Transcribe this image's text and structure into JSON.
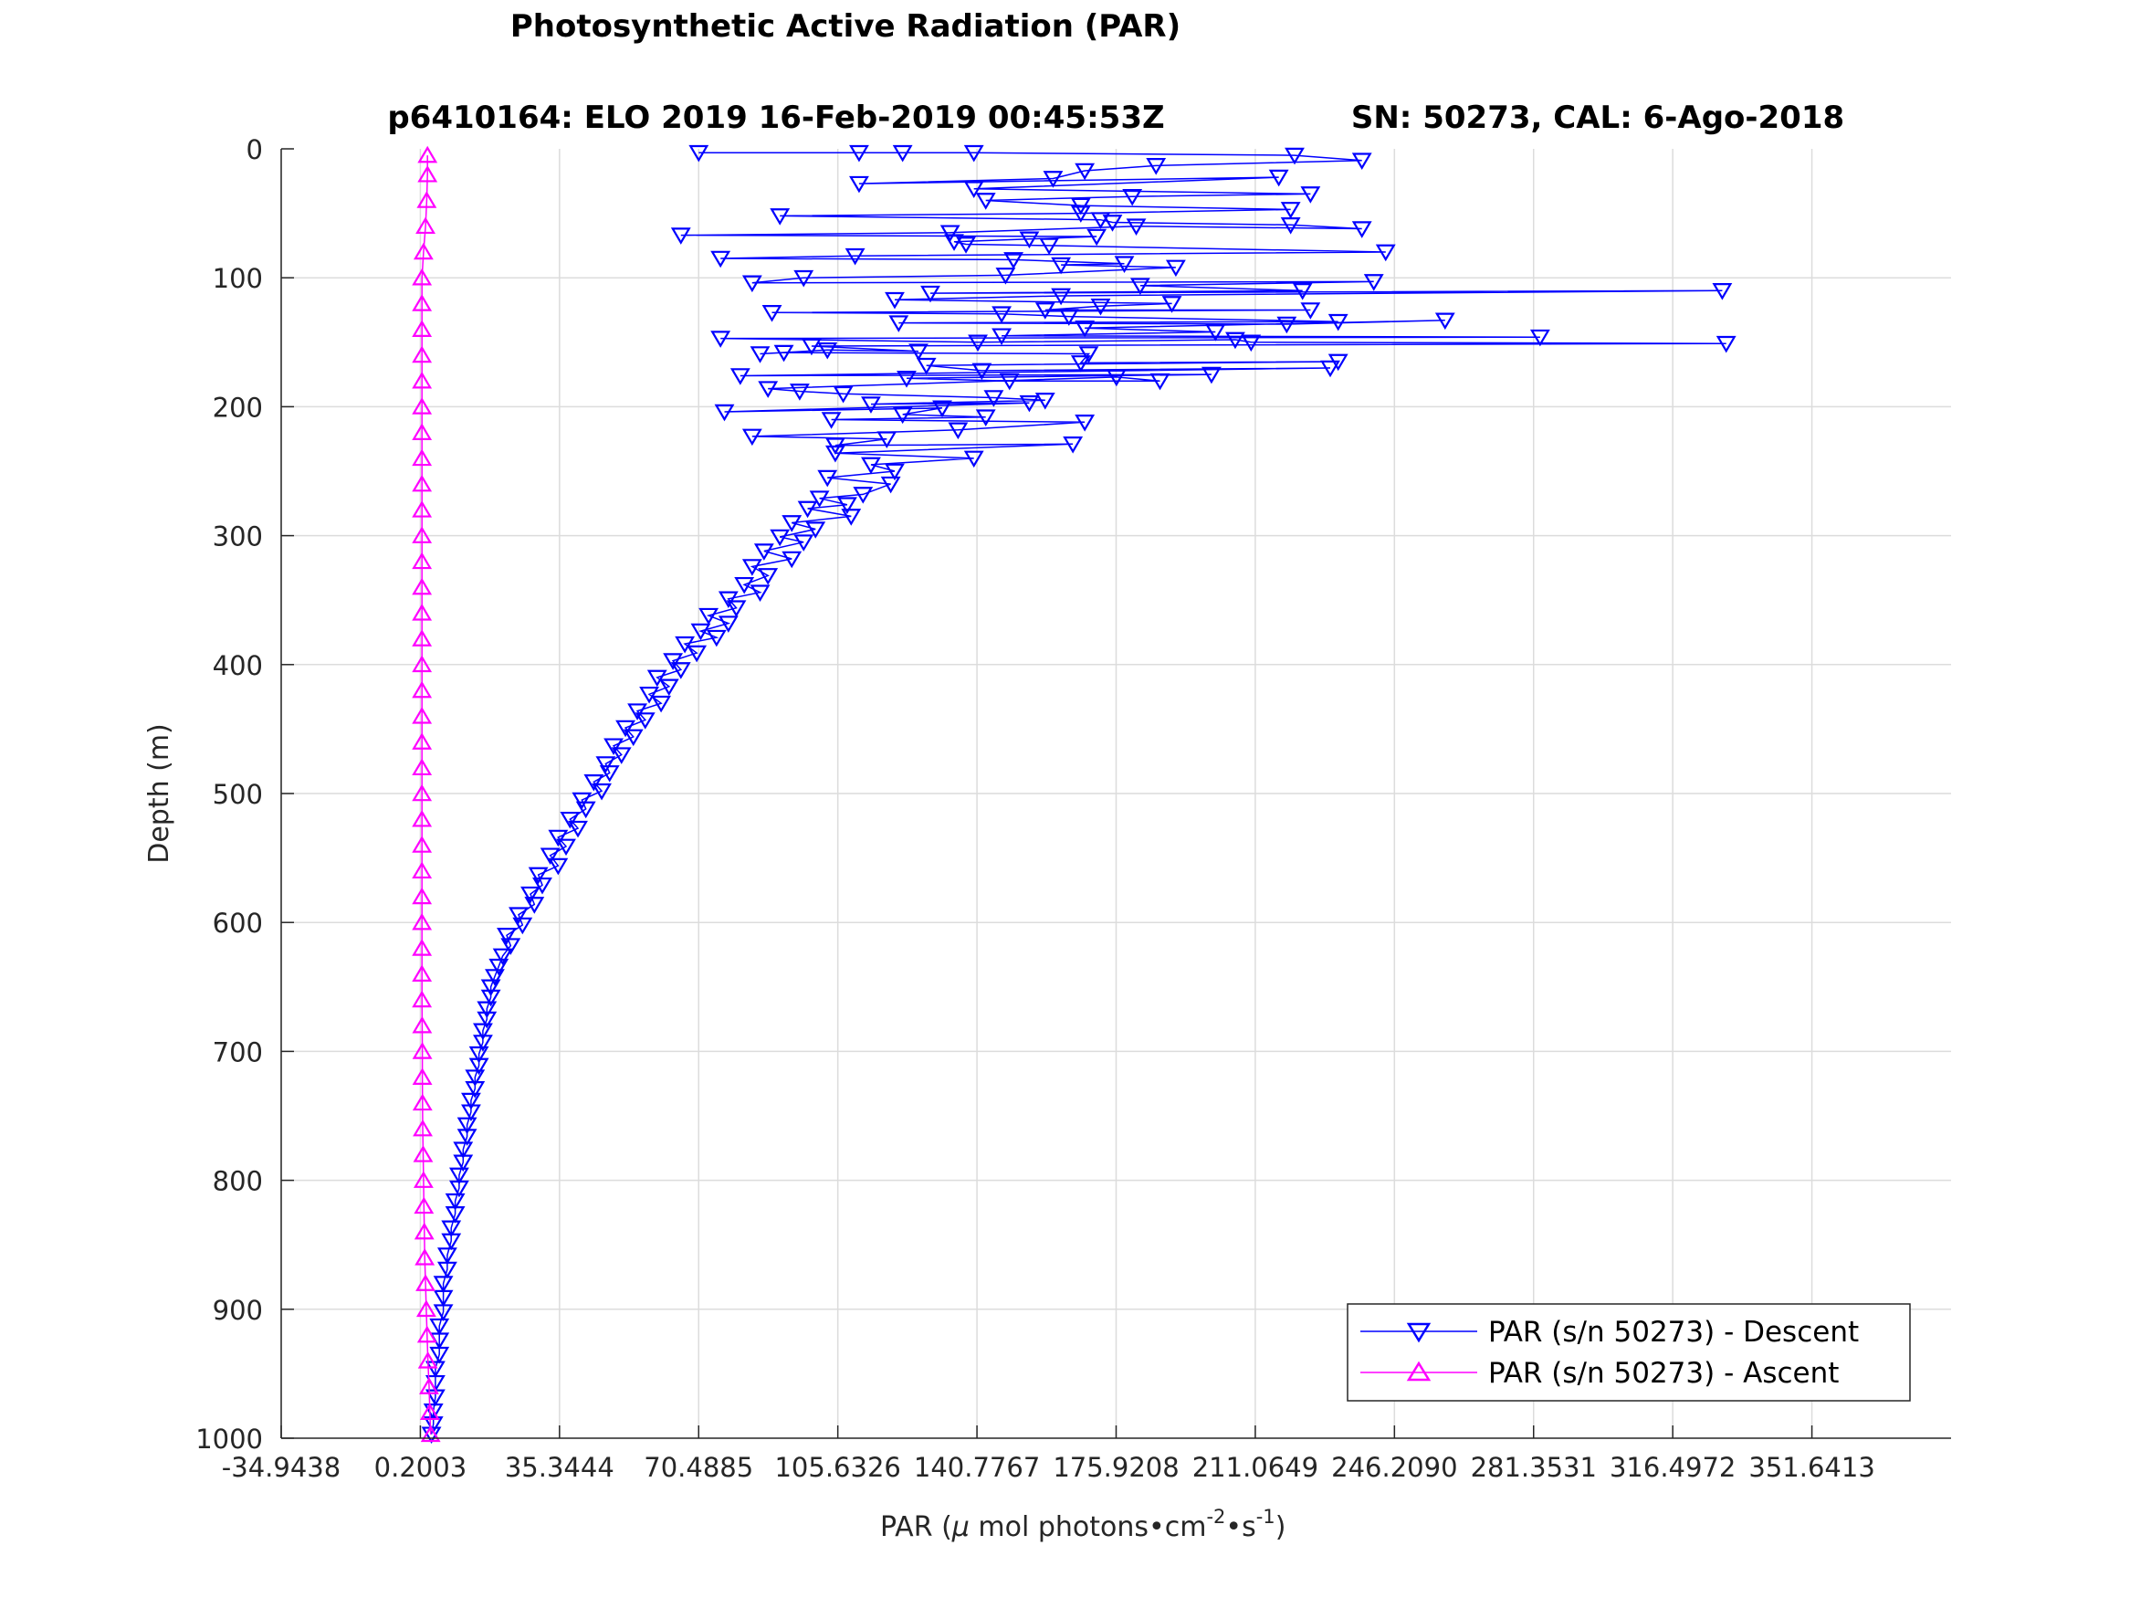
{
  "chart_data": {
    "type": "scatter",
    "title": "Photosynthetic Active Radiation (PAR)",
    "subtitle_left": "p6410164: ELO 2019 16-Feb-2019 00:45:53Z",
    "subtitle_right": "SN: 50273, CAL: 6-Ago-2018",
    "xlabel_pre": "PAR (",
    "xlabel_mu": "μ",
    "xlabel_mid": " mol photons•cm",
    "xlabel_exp1": "-2",
    "xlabel_mid2": "•s",
    "xlabel_exp2": "-1",
    "xlabel_post": ")",
    "ylabel": "Depth (m)",
    "xlim": [
      -34.9438,
      386.7854
    ],
    "ylim": [
      0,
      1000
    ],
    "y_reversed": true,
    "grid": true,
    "legend_position": "bottom-right",
    "x_ticks": [
      -34.9438,
      0.2003,
      35.3444,
      70.4885,
      105.6326,
      140.7767,
      175.9208,
      211.0649,
      246.209,
      281.3531,
      316.4972,
      351.6413
    ],
    "x_tick_labels": [
      "-34.9438",
      "0.2003",
      "35.3444",
      "70.4885",
      "105.6326",
      "140.7767",
      "175.9208",
      "211.0649",
      "246.2090",
      "281.3531",
      "316.4972",
      "351.6413"
    ],
    "y_ticks": [
      0,
      100,
      200,
      300,
      400,
      500,
      600,
      700,
      800,
      900,
      1000
    ],
    "y_tick_labels": [
      "0",
      "100",
      "200",
      "300",
      "400",
      "500",
      "600",
      "700",
      "800",
      "900",
      "1000"
    ],
    "series": [
      {
        "name": "PAR (s/n 50273) - Descent",
        "color": "#0000ff",
        "marker": "triangle-down",
        "points": [
          [
            70.5,
            3
          ],
          [
            111,
            3
          ],
          [
            122,
            3
          ],
          [
            140,
            3
          ],
          [
            221,
            5
          ],
          [
            238,
            9
          ],
          [
            186,
            13
          ],
          [
            168,
            17
          ],
          [
            160,
            23
          ],
          [
            111,
            27
          ],
          [
            217,
            22
          ],
          [
            140,
            31
          ],
          [
            225,
            35
          ],
          [
            180,
            37
          ],
          [
            143,
            40
          ],
          [
            167,
            44
          ],
          [
            220,
            47
          ],
          [
            167,
            50
          ],
          [
            91,
            52
          ],
          [
            172,
            55
          ],
          [
            175,
            57
          ],
          [
            220,
            59
          ],
          [
            238,
            62
          ],
          [
            181,
            60
          ],
          [
            134,
            65
          ],
          [
            66,
            67
          ],
          [
            171,
            68
          ],
          [
            154,
            70
          ],
          [
            135,
            72
          ],
          [
            138,
            74
          ],
          [
            159,
            75
          ],
          [
            244,
            80
          ],
          [
            110,
            83
          ],
          [
            76,
            85
          ],
          [
            150,
            86
          ],
          [
            178,
            89
          ],
          [
            162,
            90
          ],
          [
            191,
            92
          ],
          [
            148,
            98
          ],
          [
            97,
            100
          ],
          [
            84,
            104
          ],
          [
            241,
            103
          ],
          [
            182,
            106
          ],
          [
            223,
            110
          ],
          [
            129,
            112
          ],
          [
            329,
            110
          ],
          [
            162,
            114
          ],
          [
            120,
            117
          ],
          [
            190,
            120
          ],
          [
            172,
            122
          ],
          [
            158,
            125
          ],
          [
            225,
            125
          ],
          [
            89,
            127
          ],
          [
            147,
            128
          ],
          [
            164,
            130
          ],
          [
            232,
            134
          ],
          [
            121,
            135
          ],
          [
            219,
            136
          ],
          [
            259,
            133
          ],
          [
            168,
            139
          ],
          [
            201,
            142
          ],
          [
            147,
            145
          ],
          [
            283,
            146
          ],
          [
            76,
            147
          ],
          [
            141,
            150
          ],
          [
            206,
            148
          ],
          [
            210,
            150
          ],
          [
            330,
            151
          ],
          [
            99,
            153
          ],
          [
            126,
            157
          ],
          [
            103,
            156
          ],
          [
            86,
            159
          ],
          [
            92,
            158
          ],
          [
            169,
            159
          ],
          [
            167,
            166
          ],
          [
            232,
            165
          ],
          [
            128,
            168
          ],
          [
            142,
            172
          ],
          [
            230,
            170
          ],
          [
            81,
            176
          ],
          [
            200,
            175
          ],
          [
            123,
            178
          ],
          [
            149,
            180
          ],
          [
            187,
            180
          ],
          [
            176,
            177
          ],
          [
            88,
            186
          ],
          [
            96,
            188
          ],
          [
            107,
            190
          ],
          [
            145,
            193
          ],
          [
            158,
            195
          ],
          [
            114,
            198
          ],
          [
            154,
            197
          ],
          [
            77,
            204
          ],
          [
            132,
            201
          ],
          [
            122,
            206
          ],
          [
            143,
            208
          ],
          [
            104,
            210
          ],
          [
            168,
            212
          ],
          [
            136,
            218
          ],
          [
            84,
            223
          ],
          [
            118,
            225
          ],
          [
            105,
            230
          ],
          [
            165,
            229
          ],
          [
            105,
            236
          ],
          [
            140,
            240
          ],
          [
            114,
            245
          ],
          [
            120,
            250
          ],
          [
            103,
            255
          ],
          [
            119,
            260
          ],
          [
            112,
            268
          ],
          [
            101,
            271
          ],
          [
            108,
            276
          ],
          [
            98,
            279
          ],
          [
            109,
            285
          ],
          [
            94,
            290
          ],
          [
            100,
            295
          ],
          [
            91,
            301
          ],
          [
            97,
            305
          ],
          [
            87,
            312
          ],
          [
            94,
            318
          ],
          [
            84,
            324
          ],
          [
            88,
            331
          ],
          [
            82,
            338
          ],
          [
            86,
            344
          ],
          [
            78,
            349
          ],
          [
            80,
            356
          ],
          [
            73,
            362
          ],
          [
            78,
            368
          ],
          [
            71,
            374
          ],
          [
            75,
            379
          ],
          [
            67,
            384
          ],
          [
            70,
            391
          ],
          [
            64,
            397
          ],
          [
            66,
            404
          ],
          [
            60,
            410
          ],
          [
            63,
            417
          ],
          [
            58,
            423
          ],
          [
            61,
            430
          ],
          [
            55,
            436
          ],
          [
            57,
            443
          ],
          [
            52,
            449
          ],
          [
            54,
            456
          ],
          [
            49,
            463
          ],
          [
            51,
            470
          ],
          [
            47,
            477
          ],
          [
            48,
            484
          ],
          [
            44,
            491
          ],
          [
            46,
            498
          ],
          [
            41,
            505
          ],
          [
            42,
            512
          ],
          [
            38,
            520
          ],
          [
            40,
            527
          ],
          [
            35,
            534
          ],
          [
            37,
            541
          ],
          [
            33,
            548
          ],
          [
            35,
            556
          ],
          [
            30,
            563
          ],
          [
            31,
            571
          ],
          [
            28,
            578
          ],
          [
            29,
            586
          ],
          [
            25,
            594
          ],
          [
            26,
            602
          ],
          [
            22,
            610
          ],
          [
            23,
            618
          ],
          [
            21,
            626
          ],
          [
            20,
            634
          ],
          [
            19,
            642
          ],
          [
            18,
            650
          ],
          [
            18,
            658
          ],
          [
            17,
            667
          ],
          [
            17,
            675
          ],
          [
            16,
            684
          ],
          [
            16,
            693
          ],
          [
            15,
            702
          ],
          [
            15,
            711
          ],
          [
            14,
            720
          ],
          [
            14,
            729
          ],
          [
            13,
            738
          ],
          [
            13,
            747
          ],
          [
            12,
            757
          ],
          [
            12,
            766
          ],
          [
            11,
            776
          ],
          [
            11,
            786
          ],
          [
            10,
            796
          ],
          [
            10,
            806
          ],
          [
            9,
            816
          ],
          [
            9,
            826
          ],
          [
            8,
            837
          ],
          [
            8,
            847
          ],
          [
            7,
            858
          ],
          [
            7,
            869
          ],
          [
            6,
            880
          ],
          [
            6,
            891
          ],
          [
            6,
            902
          ],
          [
            5,
            913
          ],
          [
            5,
            924
          ],
          [
            5,
            935
          ],
          [
            4,
            946
          ],
          [
            4,
            957
          ],
          [
            4,
            968
          ],
          [
            3.5,
            979
          ],
          [
            3.5,
            989
          ],
          [
            3,
            997
          ]
        ]
      },
      {
        "name": "PAR (s/n 50273) - Ascent",
        "color": "#ff00ff",
        "marker": "triangle-up",
        "points": [
          [
            2.8,
            997
          ],
          [
            2.6,
            980
          ],
          [
            2.4,
            960
          ],
          [
            2.1,
            940
          ],
          [
            1.9,
            920
          ],
          [
            1.7,
            900
          ],
          [
            1.5,
            880
          ],
          [
            1.3,
            860
          ],
          [
            1.2,
            840
          ],
          [
            1.1,
            820
          ],
          [
            1.0,
            800
          ],
          [
            0.9,
            780
          ],
          [
            0.8,
            760
          ],
          [
            0.75,
            740
          ],
          [
            0.7,
            720
          ],
          [
            0.7,
            700
          ],
          [
            0.65,
            680
          ],
          [
            0.6,
            660
          ],
          [
            0.6,
            640
          ],
          [
            0.6,
            620
          ],
          [
            0.6,
            600
          ],
          [
            0.6,
            580
          ],
          [
            0.6,
            560
          ],
          [
            0.6,
            540
          ],
          [
            0.6,
            520
          ],
          [
            0.6,
            500
          ],
          [
            0.6,
            480
          ],
          [
            0.6,
            460
          ],
          [
            0.6,
            440
          ],
          [
            0.6,
            420
          ],
          [
            0.6,
            400
          ],
          [
            0.6,
            380
          ],
          [
            0.6,
            360
          ],
          [
            0.6,
            340
          ],
          [
            0.6,
            320
          ],
          [
            0.6,
            300
          ],
          [
            0.6,
            280
          ],
          [
            0.6,
            260
          ],
          [
            0.6,
            240
          ],
          [
            0.6,
            220
          ],
          [
            0.6,
            200
          ],
          [
            0.6,
            180
          ],
          [
            0.6,
            160
          ],
          [
            0.6,
            140
          ],
          [
            0.6,
            120
          ],
          [
            0.6,
            100
          ],
          [
            1.0,
            80
          ],
          [
            1.5,
            60
          ],
          [
            1.8,
            40
          ],
          [
            2.0,
            20
          ],
          [
            2.0,
            5
          ]
        ]
      }
    ]
  }
}
